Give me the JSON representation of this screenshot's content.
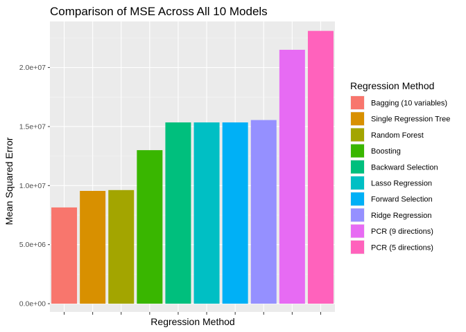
{
  "chart_data": {
    "type": "bar",
    "title": "Comparison of MSE Across All 10 Models",
    "xlabel": "Regression Method",
    "ylabel": "Mean Squared Error",
    "categories": [
      "Bagging (10 variables)",
      "Single Regression Tree",
      "Random Forest",
      "Boosting",
      "Backward Selection",
      "Lasso Regression",
      "Forward Selection",
      "Ridge Regression",
      "PCR (9 directions)",
      "PCR (5 directions)"
    ],
    "values": [
      8150000,
      9550000,
      9620000,
      13000000,
      15350000,
      15350000,
      15350000,
      15550000,
      21500000,
      23100000
    ],
    "colors": [
      "#F8766D",
      "#D89000",
      "#A3A500",
      "#39B600",
      "#00BF7D",
      "#00BFC4",
      "#00B0F6",
      "#9590FF",
      "#E76BF3",
      "#FF62BC"
    ],
    "ylim": [
      -700000,
      23900000
    ],
    "yticks": [
      0,
      5000000,
      10000000,
      15000000,
      20000000
    ],
    "ytick_labels": [
      "0.0e+00",
      "5.0e+06",
      "1.0e+07",
      "1.5e+07",
      "2.0e+07"
    ],
    "grid": true,
    "panel_background": "#EBEBEB",
    "legend": {
      "title": "Regression Method",
      "position": "right",
      "entries": [
        "Bagging (10 variables)",
        "Single Regression Tree",
        "Random Forest",
        "Boosting",
        "Backward Selection",
        "Lasso Regression",
        "Forward Selection",
        "Ridge Regression",
        "PCR (9 directions)",
        "PCR (5 directions)"
      ]
    }
  }
}
